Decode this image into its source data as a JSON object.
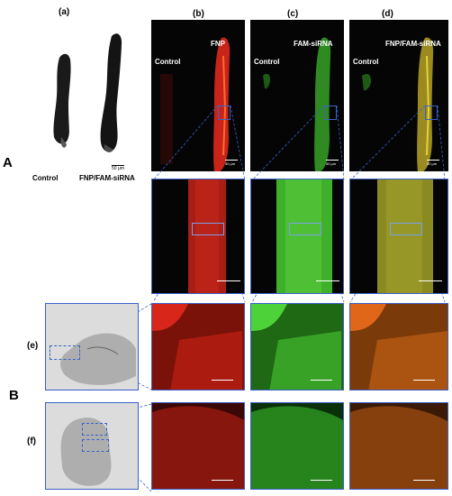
{
  "panel_labels": {
    "a": "(a)",
    "b": "(b)",
    "c": "(c)",
    "d": "(d)",
    "e": "(e)",
    "f": "(f)"
  },
  "section_labels": {
    "A": "A",
    "B": "B"
  },
  "column_titles": {
    "b": "FNP",
    "c": "FAM-siRNA",
    "d": "FNP/FAM-siRNA"
  },
  "control_label": "Control",
  "grayscale_labels": {
    "left": "Control",
    "right": "FNP/FAM-siRNA"
  },
  "scale_bars": {
    "a": "50 μm",
    "b": "50 μm",
    "c": "50 μm",
    "d": "50 μm"
  },
  "colors": {
    "red": "#d8261a",
    "green": "#4ed23a",
    "yellow": "#cfc62a",
    "zoom_box": "#4a78d8",
    "dashed": "#3b5fc8"
  }
}
